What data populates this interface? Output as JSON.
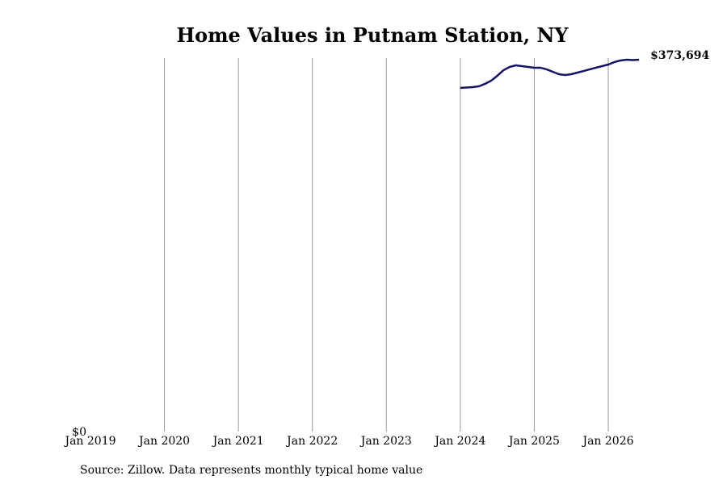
{
  "chart_data": {
    "type": "line",
    "title": "Home Values in Putnam Station, NY",
    "source": "Source: Zillow. Data represents monthly typical home value",
    "x": [
      "2024-01",
      "2024-02",
      "2024-03",
      "2024-04",
      "2024-05",
      "2024-06",
      "2024-07",
      "2024-08",
      "2024-09",
      "2024-10",
      "2024-11",
      "2024-12",
      "2025-01",
      "2025-02",
      "2025-03",
      "2025-04",
      "2025-05",
      "2025-06",
      "2025-07",
      "2025-08",
      "2025-09",
      "2025-10",
      "2025-11",
      "2025-12",
      "2026-01",
      "2026-02",
      "2026-03",
      "2026-04",
      "2026-05",
      "2026-06"
    ],
    "series": [
      {
        "name": "Typical home value",
        "color": "#141464",
        "values": [
          345300,
          345700,
          346100,
          346900,
          349400,
          352600,
          357500,
          363100,
          366400,
          368000,
          367200,
          366400,
          365600,
          365600,
          364000,
          361500,
          359100,
          358300,
          359100,
          360700,
          362300,
          364000,
          365600,
          367200,
          368800,
          371300,
          372900,
          373700,
          373300,
          373694
        ]
      }
    ],
    "last_value_label": "$373,694",
    "xlim": [
      "2019-01",
      "2026-07"
    ],
    "xticks": [
      {
        "value": "2019-01",
        "label": "Jan 2019"
      },
      {
        "value": "2020-01",
        "label": "Jan 2020"
      },
      {
        "value": "2021-01",
        "label": "Jan 2021"
      },
      {
        "value": "2022-01",
        "label": "Jan 2022"
      },
      {
        "value": "2023-01",
        "label": "Jan 2023"
      },
      {
        "value": "2024-01",
        "label": "Jan 2024"
      },
      {
        "value": "2025-01",
        "label": "Jan 2025"
      },
      {
        "value": "2026-01",
        "label": "Jan 2026"
      }
    ],
    "ylim": [
      0,
      375300
    ],
    "yticks": [
      {
        "value": 0,
        "label": "$0"
      }
    ],
    "grid": true
  }
}
